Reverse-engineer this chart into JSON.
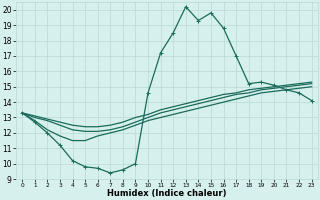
{
  "xlabel": "Humidex (Indice chaleur)",
  "ylabel": "",
  "xlim": [
    -0.5,
    23.5
  ],
  "ylim": [
    9,
    20.5
  ],
  "xticks": [
    0,
    1,
    2,
    3,
    4,
    5,
    6,
    7,
    8,
    9,
    10,
    11,
    12,
    13,
    14,
    15,
    16,
    17,
    18,
    19,
    20,
    21,
    22,
    23
  ],
  "yticks": [
    9,
    10,
    11,
    12,
    13,
    14,
    15,
    16,
    17,
    18,
    19,
    20
  ],
  "bg_color": "#d6f0ee",
  "grid_color": "#b8d8d4",
  "line_color": "#1a6b5a",
  "line1_x": [
    0,
    1,
    2,
    3,
    4,
    5,
    6,
    7,
    8,
    9,
    10,
    11,
    12,
    13,
    14,
    15,
    16,
    17,
    18,
    19,
    20,
    21,
    22,
    23
  ],
  "line1_y": [
    13.3,
    12.7,
    12.0,
    11.2,
    10.2,
    9.8,
    9.7,
    9.4,
    9.6,
    10.0,
    14.6,
    17.2,
    18.5,
    20.2,
    19.3,
    19.8,
    18.8,
    17.0,
    15.2,
    15.3,
    15.1,
    14.8,
    14.6,
    14.1
  ],
  "line2_x": [
    0,
    1,
    2,
    3,
    4,
    5,
    6,
    7,
    8,
    9,
    10,
    11,
    12,
    13,
    14,
    15,
    16,
    17,
    18,
    19,
    20,
    21,
    22,
    23
  ],
  "line2_y": [
    13.3,
    12.8,
    12.2,
    11.8,
    11.5,
    11.5,
    11.8,
    12.0,
    12.2,
    12.5,
    12.8,
    13.0,
    13.2,
    13.4,
    13.6,
    13.8,
    14.0,
    14.2,
    14.4,
    14.6,
    14.7,
    14.8,
    14.9,
    15.0
  ],
  "line3_x": [
    0,
    1,
    2,
    3,
    4,
    5,
    6,
    7,
    8,
    9,
    10,
    11,
    12,
    13,
    14,
    15,
    16,
    17,
    18,
    19,
    20,
    21,
    22,
    23
  ],
  "line3_y": [
    13.3,
    13.0,
    12.8,
    12.5,
    12.2,
    12.1,
    12.1,
    12.2,
    12.4,
    12.7,
    13.0,
    13.3,
    13.5,
    13.7,
    13.9,
    14.1,
    14.3,
    14.5,
    14.6,
    14.8,
    14.9,
    15.0,
    15.1,
    15.2
  ],
  "line4_x": [
    0,
    1,
    2,
    3,
    4,
    5,
    6,
    7,
    8,
    9,
    10,
    11,
    12,
    13,
    14,
    15,
    16,
    17,
    18,
    19,
    20,
    21,
    22,
    23
  ],
  "line4_y": [
    13.3,
    13.1,
    12.9,
    12.7,
    12.5,
    12.4,
    12.4,
    12.5,
    12.7,
    13.0,
    13.2,
    13.5,
    13.7,
    13.9,
    14.1,
    14.3,
    14.5,
    14.6,
    14.8,
    14.9,
    15.0,
    15.1,
    15.2,
    15.3
  ],
  "xtick_fontsize": 4.2,
  "ytick_fontsize": 5.5,
  "xlabel_fontsize": 6.0
}
